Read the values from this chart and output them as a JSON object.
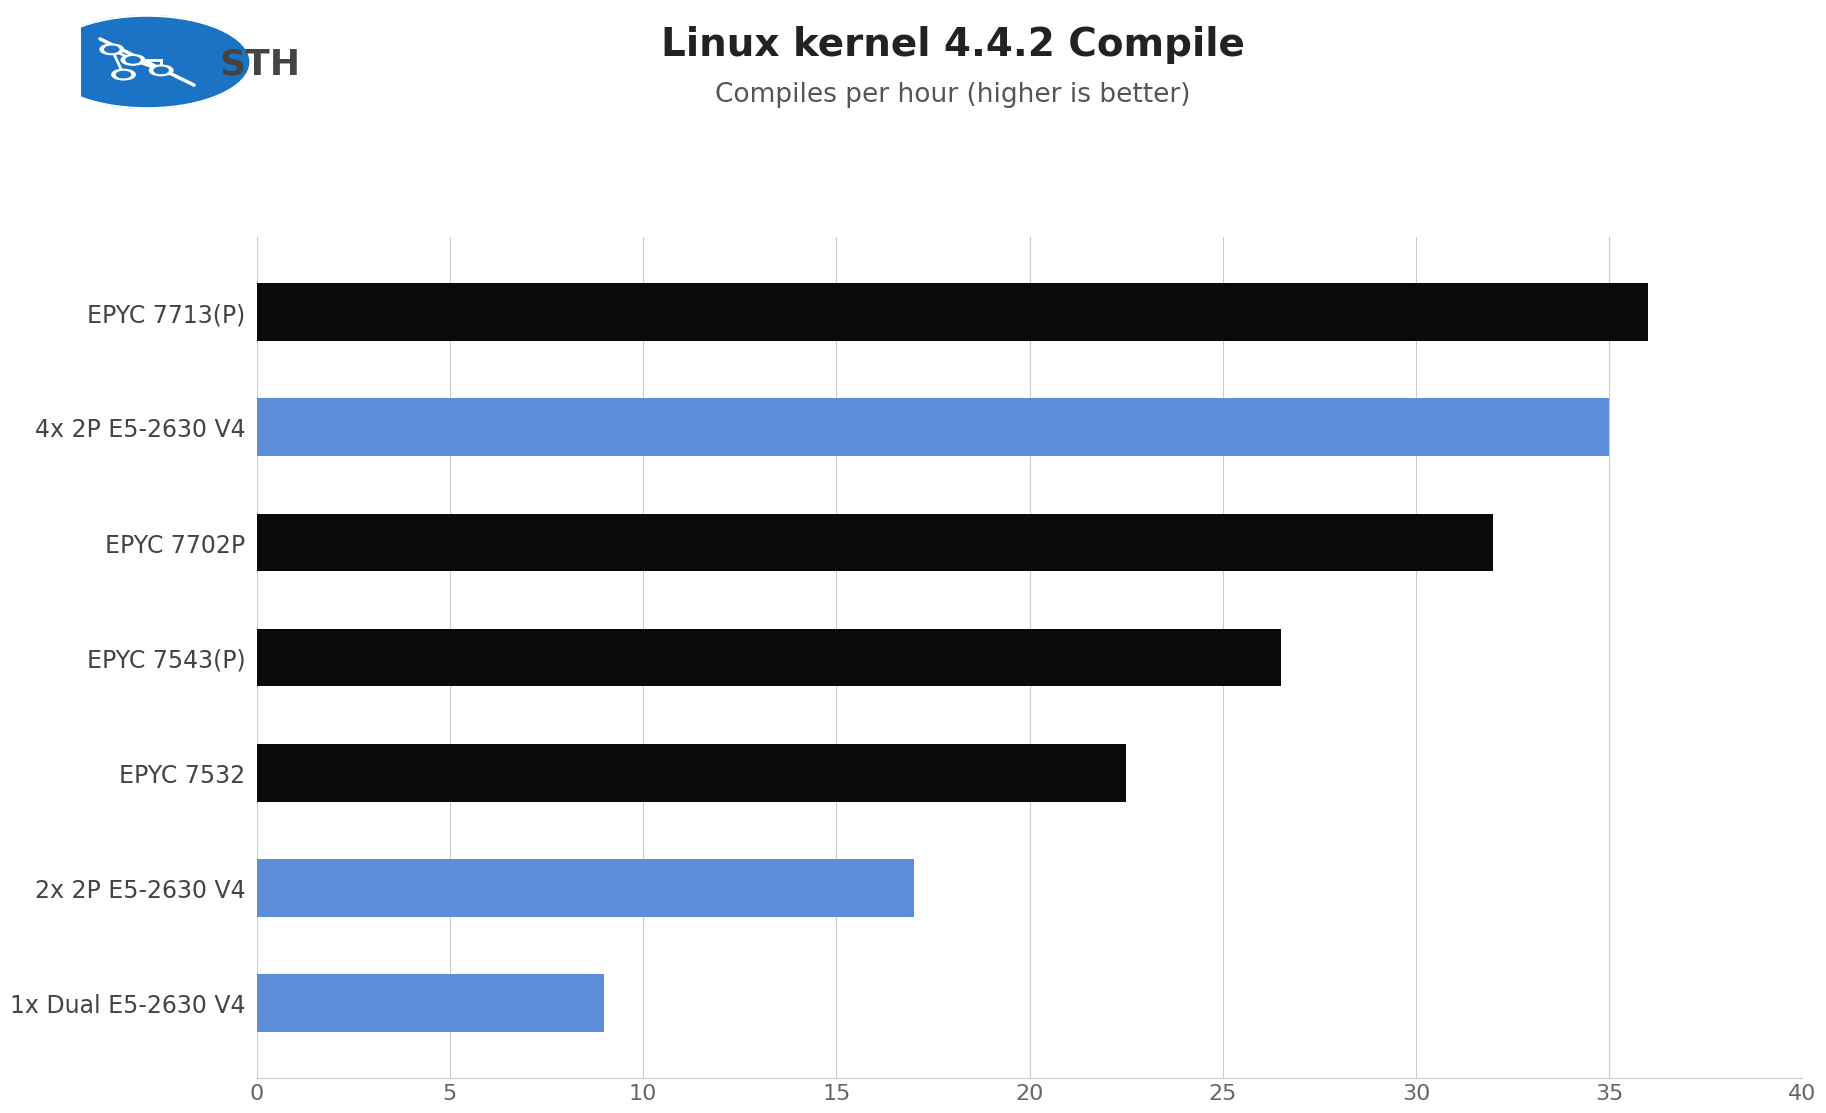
{
  "title": "Linux kernel 4.4.2 Compile",
  "subtitle": "Compiles per hour (higher is better)",
  "categories": [
    "EPYC 7713(P)",
    "4x 2P E5-2630 V4",
    "EPYC 7702P",
    "EPYC 7543(P)",
    "EPYC 7532",
    "2x 2P E5-2630 V4",
    "1x Dual E5-2630 V4"
  ],
  "values": [
    36.0,
    35.0,
    32.0,
    26.5,
    22.5,
    17.0,
    9.0
  ],
  "bar_colors": [
    "#0a0a0a",
    "#5b8dd9",
    "#0a0a0a",
    "#0a0a0a",
    "#0a0a0a",
    "#5b8dd9",
    "#5b8dd9"
  ],
  "xlim": [
    0,
    40
  ],
  "xticks": [
    0,
    5,
    10,
    15,
    20,
    25,
    30,
    35,
    40
  ],
  "background_color": "#ffffff",
  "grid_color": "#cccccc",
  "title_fontsize": 28,
  "subtitle_fontsize": 19,
  "label_fontsize": 17,
  "tick_fontsize": 16,
  "bar_height": 0.5
}
